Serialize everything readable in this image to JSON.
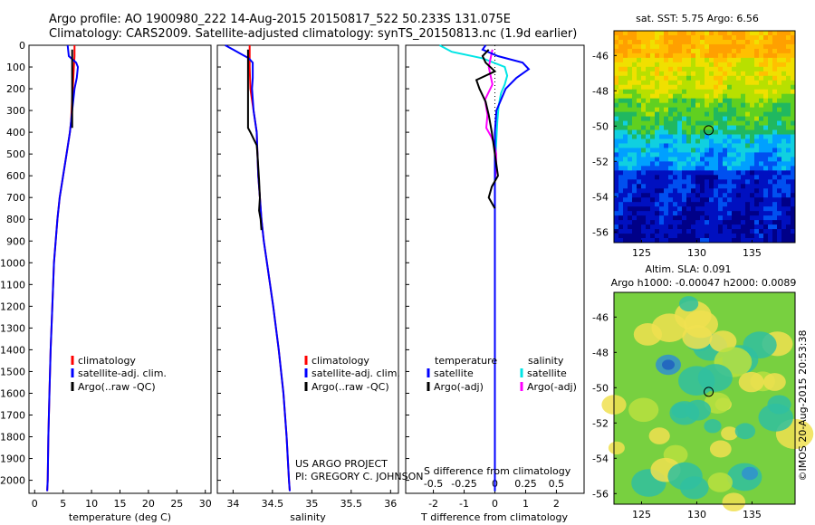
{
  "header": {
    "line1": "Argo profile: AO 1900980_222 14-Aug-2015 20150817_522 50.233S 131.075E",
    "line2": "Climatology: CARS2009. Satellite-adjusted climatology: synTS_20150813.nc (1.9d earlier)"
  },
  "colors": {
    "climatology": "#ff0000",
    "satellite": "#0000ff",
    "argo": "#000000",
    "sat_salinity": "#00e5e5",
    "argo_salinity": "#ff00ff"
  },
  "depth_axis": {
    "ticks": [
      0,
      100,
      200,
      300,
      400,
      500,
      600,
      700,
      800,
      900,
      1000,
      1100,
      1200,
      1300,
      1400,
      1500,
      1600,
      1700,
      1800,
      1900,
      2000
    ],
    "range": [
      0,
      2060
    ]
  },
  "panels": {
    "temperature": {
      "xlabel": "temperature (deg C)",
      "xticks": [
        0,
        5,
        10,
        15,
        20,
        25,
        30
      ],
      "legend": [
        "climatology",
        "satellite-adj. clim.",
        "Argo(..raw -QC)"
      ]
    },
    "salinity": {
      "xlabel": "salinity",
      "xticks": [
        "34",
        "34.5",
        "35",
        "35.5",
        "36"
      ],
      "legend": [
        "climatology",
        "satellite-adj. clim.",
        "Argo(..raw -QC)"
      ],
      "project_line1": "US ARGO PROJECT",
      "project_line2": "PI: GREGORY C. JOHNSON"
    },
    "difference": {
      "xlabel_bottom": "T difference from climatology",
      "xlabel_top": "S difference from climatology",
      "xticks_T": [
        "-2",
        "-1",
        "0",
        "1",
        "2"
      ],
      "xticks_S": [
        "-0.5",
        "-0.25",
        "0",
        "0.25",
        "0.5"
      ],
      "legend_temp_title": "temperature",
      "legend_sal_title": "salinity",
      "legend_items": [
        "satellite",
        "Argo(-adj)",
        "satellite",
        "Argo(-adj)"
      ]
    }
  },
  "maps": {
    "sst": {
      "title": "sat. SST: 5.75 Argo: 6.56",
      "yticks": [
        "-46",
        "-48",
        "-50",
        "-52",
        "-54",
        "-56"
      ],
      "xticks": [
        "125",
        "130",
        "135"
      ]
    },
    "sla": {
      "title1": "Altim. SLA: 0.091",
      "title2": "Argo h1000: -0.00047 h2000: 0.0089",
      "yticks": [
        "-46",
        "-48",
        "-50",
        "-52",
        "-54",
        "-56"
      ],
      "xticks": [
        "125",
        "130",
        "135"
      ]
    },
    "credit": "©IMOS 20-Aug-2015 20:53:38"
  },
  "chart_data": [
    {
      "type": "line",
      "title": "",
      "xlabel": "temperature (deg C)",
      "ylabel": "",
      "xlim": [
        -1,
        31
      ],
      "ylim": [
        2060,
        0
      ],
      "series": [
        {
          "name": "climatology",
          "depth": [
            0,
            50,
            100,
            150,
            200,
            250,
            300,
            350,
            400,
            500,
            600,
            700,
            800,
            900,
            1000,
            1200,
            1400,
            1600,
            1800,
            2000,
            2050
          ],
          "values": [
            7.0,
            7.0,
            6.9,
            6.8,
            6.7,
            6.6,
            6.5,
            6.4,
            6.2,
            5.6,
            5.0,
            4.4,
            4.0,
            3.7,
            3.4,
            3.1,
            2.8,
            2.6,
            2.4,
            2.3,
            2.2
          ]
        },
        {
          "name": "satellite-adj. clim.",
          "depth": [
            0,
            50,
            80,
            100,
            150,
            200,
            250,
            300,
            350,
            400,
            500,
            600,
            700,
            800,
            900,
            1000,
            1200,
            1400,
            1600,
            1800,
            2000,
            2050
          ],
          "values": [
            5.8,
            6.0,
            7.3,
            7.6,
            7.4,
            7.0,
            6.8,
            6.6,
            6.4,
            6.2,
            5.6,
            5.0,
            4.4,
            4.0,
            3.7,
            3.4,
            3.1,
            2.8,
            2.6,
            2.4,
            2.3,
            2.2
          ]
        },
        {
          "name": "Argo(..raw -QC)",
          "depth": [
            20,
            100,
            200,
            300,
            380
          ],
          "values": [
            6.6,
            6.6,
            6.6,
            6.6,
            6.6
          ]
        }
      ]
    },
    {
      "type": "line",
      "title": "",
      "xlabel": "salinity",
      "ylabel": "",
      "xlim": [
        33.8,
        36.1
      ],
      "ylim": [
        2060,
        0
      ],
      "series": [
        {
          "name": "climatology",
          "depth": [
            0,
            100,
            200,
            300,
            400,
            500,
            600,
            700,
            800,
            900,
            1000,
            1200,
            1400,
            1600,
            1800,
            2000,
            2050
          ],
          "values": [
            34.21,
            34.21,
            34.22,
            34.26,
            34.3,
            34.31,
            34.32,
            34.34,
            34.36,
            34.39,
            34.43,
            34.51,
            34.58,
            34.64,
            34.68,
            34.71,
            34.72
          ]
        },
        {
          "name": "satellite-adj. clim.",
          "depth": [
            0,
            20,
            40,
            60,
            80,
            100,
            150,
            200,
            300,
            400,
            500,
            600,
            700,
            800,
            900,
            1000,
            1200,
            1400,
            1600,
            1800,
            2000,
            2050
          ],
          "values": [
            33.9,
            34.0,
            34.1,
            34.2,
            34.25,
            34.25,
            34.25,
            34.24,
            34.26,
            34.3,
            34.31,
            34.32,
            34.34,
            34.36,
            34.39,
            34.43,
            34.51,
            34.58,
            34.64,
            34.68,
            34.71,
            34.72
          ]
        },
        {
          "name": "Argo(..raw -QC)",
          "depth": [
            20,
            100,
            200,
            300,
            380,
            400,
            430,
            460,
            500,
            560,
            620,
            700,
            760,
            800,
            850
          ],
          "values": [
            34.19,
            34.19,
            34.19,
            34.19,
            34.19,
            34.22,
            34.26,
            34.3,
            34.31,
            34.32,
            34.33,
            34.34,
            34.33,
            34.35,
            34.36
          ]
        }
      ]
    },
    {
      "type": "line",
      "title": "",
      "xlabel": "T difference from climatology",
      "ylabel": "",
      "xlim": [
        -2.9,
        2.9
      ],
      "ylim": [
        2060,
        0
      ],
      "series": [
        {
          "name": "satellite",
          "depth": [
            0,
            20,
            50,
            80,
            110,
            150,
            200,
            250,
            300,
            400,
            500,
            600,
            700,
            800,
            900,
            1000,
            1200,
            1500,
            1800,
            2050
          ],
          "values": [
            -0.3,
            -0.4,
            0.1,
            0.9,
            1.1,
            0.7,
            0.35,
            0.2,
            0.05,
            0.0,
            0.0,
            0.0,
            0.0,
            0.0,
            0.0,
            0.0,
            0.0,
            0.0,
            0.0,
            0.0
          ]
        },
        {
          "name": "Argo(-adj)",
          "depth": [
            20,
            50,
            80,
            120,
            160,
            200,
            260,
            320,
            400,
            500,
            600,
            650,
            700,
            750
          ],
          "values": [
            -0.2,
            -0.4,
            -0.3,
            0.0,
            -0.6,
            -0.5,
            -0.3,
            -0.2,
            -0.1,
            0.0,
            0.1,
            -0.1,
            -0.2,
            0.0
          ]
        }
      ]
    },
    {
      "type": "line",
      "title": "",
      "xlabel": "S difference from climatology",
      "ylabel": "",
      "xlim": [
        -0.725,
        0.725
      ],
      "ylim": [
        2060,
        0
      ],
      "series": [
        {
          "name": "satellite",
          "depth": [
            0,
            30,
            60,
            100,
            140,
            180,
            220,
            280,
            350,
            450,
            600,
            800,
            1000,
            1300,
            1600,
            2050
          ],
          "values": [
            -0.45,
            -0.35,
            -0.1,
            0.08,
            0.1,
            0.08,
            0.05,
            0.03,
            0.02,
            0.01,
            0.0,
            0.0,
            0.0,
            0.0,
            0.0,
            0.0
          ]
        },
        {
          "name": "Argo(-adj)",
          "depth": [
            20,
            100,
            180,
            250,
            320,
            380,
            420,
            460,
            500,
            560,
            620,
            700,
            800,
            850
          ],
          "values": [
            -0.02,
            -0.05,
            -0.02,
            -0.08,
            -0.06,
            -0.07,
            -0.03,
            0.0,
            0.01,
            0.01,
            0.0,
            0.0,
            0.0,
            0.0
          ]
        }
      ]
    }
  ]
}
